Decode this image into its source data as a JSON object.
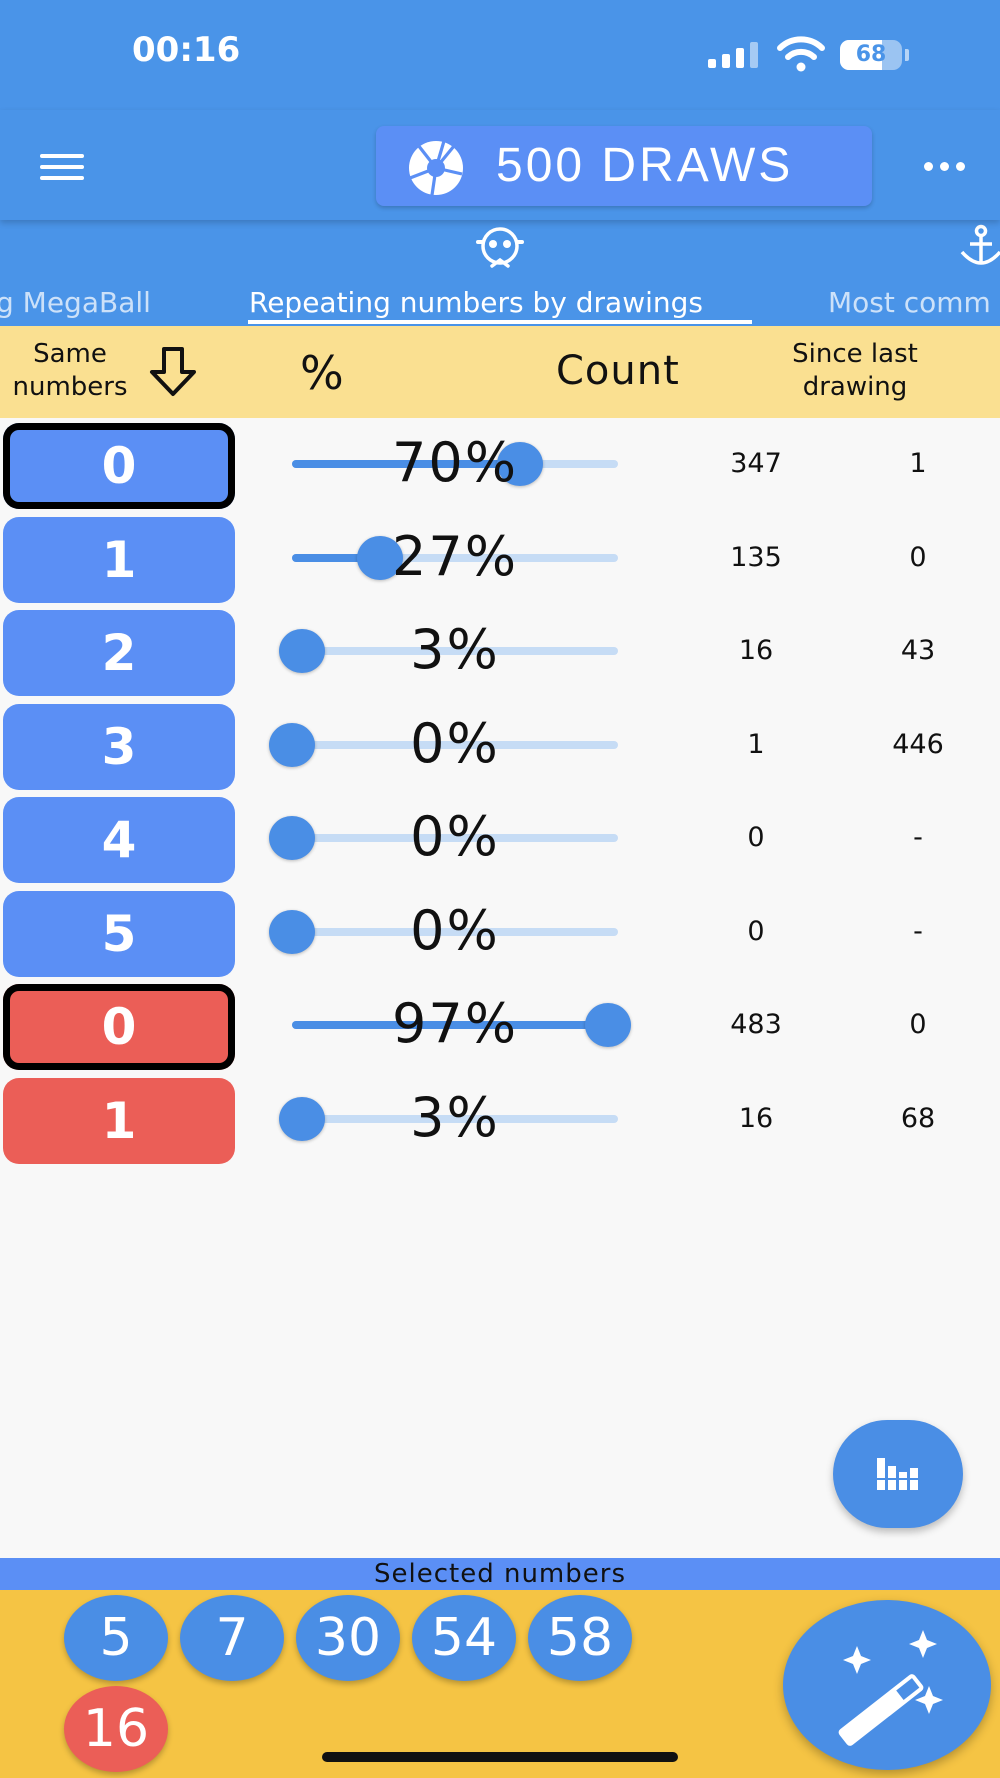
{
  "status_bar": {
    "time": "00:16",
    "battery": "68",
    "battery_level": 0.68
  },
  "app_bar": {
    "draws_label": "500 DRAWS",
    "icons": [
      "menu-icon",
      "aperture-icon",
      "more-icon"
    ]
  },
  "tabs": {
    "prev": "g MegaBall",
    "active": "Repeating numbers by drawings",
    "next": "Most comm",
    "icons": [
      "robot-icon",
      "anchor-icon"
    ]
  },
  "table_header": {
    "same_line1": "Same",
    "same_line2": "numbers",
    "percent": "%",
    "count": "Count",
    "since_line1": "Since last",
    "since_line2": "drawing",
    "sort_icon": "arrow-down-icon"
  },
  "rows": [
    {
      "number": "0",
      "percent": "70%",
      "fraction": 0.7,
      "count": "347",
      "since": "1",
      "color": "blue",
      "selected": true
    },
    {
      "number": "1",
      "percent": "27%",
      "fraction": 0.27,
      "count": "135",
      "since": "0",
      "color": "blue",
      "selected": false
    },
    {
      "number": "2",
      "percent": "3%",
      "fraction": 0.03,
      "count": "16",
      "since": "43",
      "color": "blue",
      "selected": false
    },
    {
      "number": "3",
      "percent": "0%",
      "fraction": 0.0,
      "count": "1",
      "since": "446",
      "color": "blue",
      "selected": false
    },
    {
      "number": "4",
      "percent": "0%",
      "fraction": 0.0,
      "count": "0",
      "since": "-",
      "color": "blue",
      "selected": false
    },
    {
      "number": "5",
      "percent": "0%",
      "fraction": 0.0,
      "count": "0",
      "since": "-",
      "color": "blue",
      "selected": false
    },
    {
      "number": "0",
      "percent": "97%",
      "fraction": 0.97,
      "count": "483",
      "since": "0",
      "color": "red",
      "selected": true
    },
    {
      "number": "1",
      "percent": "3%",
      "fraction": 0.03,
      "count": "16",
      "since": "68",
      "color": "red",
      "selected": false
    }
  ],
  "selected": {
    "label": "Selected numbers",
    "main": [
      "5",
      "7",
      "30",
      "54",
      "58"
    ],
    "mega": [
      "16"
    ]
  },
  "colors": {
    "primary": "#4a94e8",
    "button_blue": "#5b8ff5",
    "button_red": "#eb5e57",
    "header_yellow": "#fae091",
    "panel_yellow": "#f5c444"
  },
  "fabs": {
    "chart_icon": "bar-chart-icon",
    "wand_icon": "magic-wand-icon"
  }
}
